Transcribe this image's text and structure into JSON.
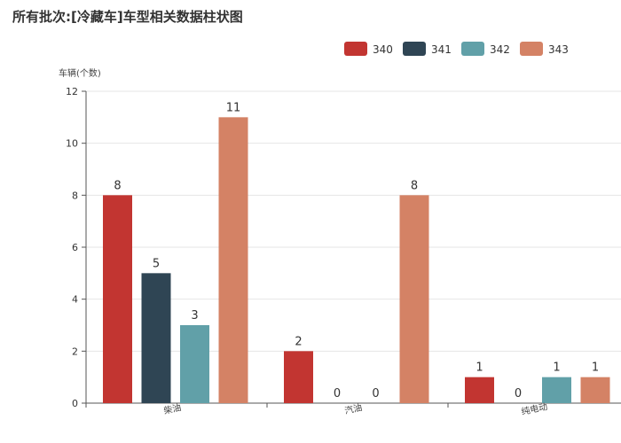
{
  "chart_data": {
    "type": "bar",
    "title": "所有批次:[冷藏车]车型相关数据柱状图",
    "ylabel": "车辆(个数)",
    "xlabel": "",
    "categories": [
      "柴油",
      "汽油",
      "纯电动"
    ],
    "series": [
      {
        "name": "340",
        "values": [
          8,
          2,
          1
        ],
        "color": "#c23531"
      },
      {
        "name": "341",
        "values": [
          5,
          0,
          0
        ],
        "color": "#2f4554"
      },
      {
        "name": "342",
        "values": [
          3,
          0,
          1
        ],
        "color": "#61a0a8"
      },
      {
        "name": "343",
        "values": [
          11,
          8,
          1
        ],
        "color": "#d48265"
      }
    ],
    "ylim": [
      0,
      12
    ],
    "yticks": [
      0,
      2,
      4,
      6,
      8,
      10,
      12
    ],
    "grid": true,
    "legend_position": "top-right"
  }
}
